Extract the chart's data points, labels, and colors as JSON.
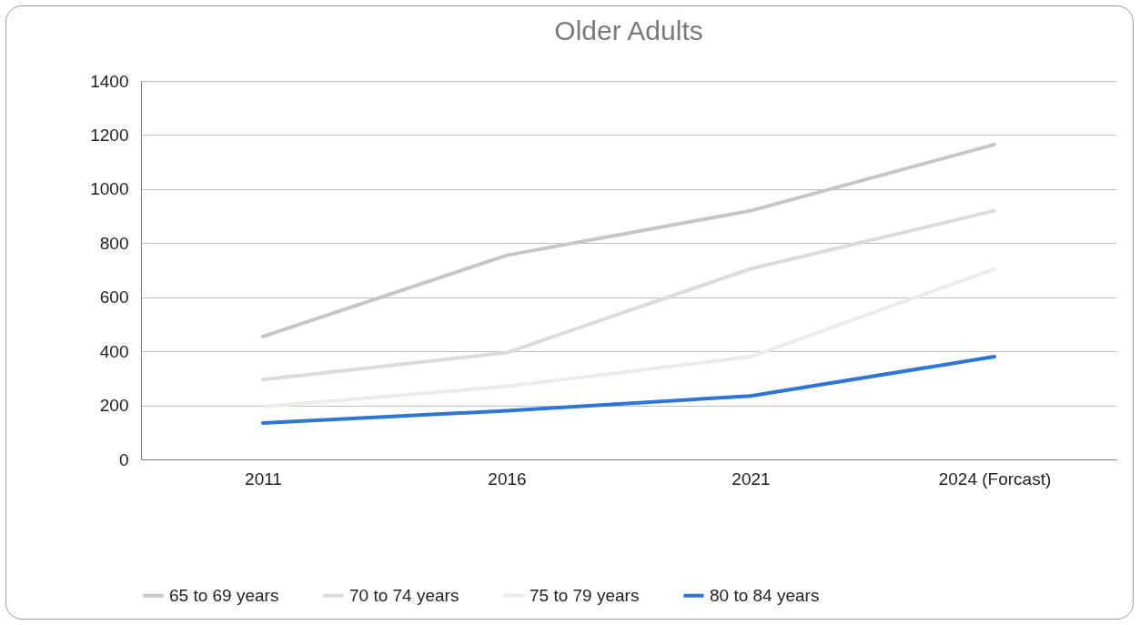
{
  "chart_data": {
    "type": "line",
    "title": "Older Adults",
    "categories": [
      "2011",
      "2016",
      "2021",
      "2024 (Forcast)"
    ],
    "series": [
      {
        "name": "65 to 69 years",
        "color": "#c9c5c0",
        "values": [
          455,
          755,
          920,
          1165
        ]
      },
      {
        "name": "70 to 74 years",
        "color": "#dedad6",
        "values": [
          295,
          395,
          705,
          920
        ]
      },
      {
        "name": "75 to 79 years",
        "color": "#eeebe8",
        "values": [
          195,
          270,
          380,
          705
        ]
      },
      {
        "name": "80 to 84 years",
        "color": "#2e75d6",
        "values": [
          135,
          180,
          235,
          380
        ]
      }
    ],
    "ylim": [
      0,
      1400
    ],
    "yticks": [
      0,
      200,
      400,
      600,
      800,
      1000,
      1200,
      1400
    ],
    "grid": "y",
    "legend": "bottom",
    "marker": "none",
    "line_style": "solid"
  }
}
